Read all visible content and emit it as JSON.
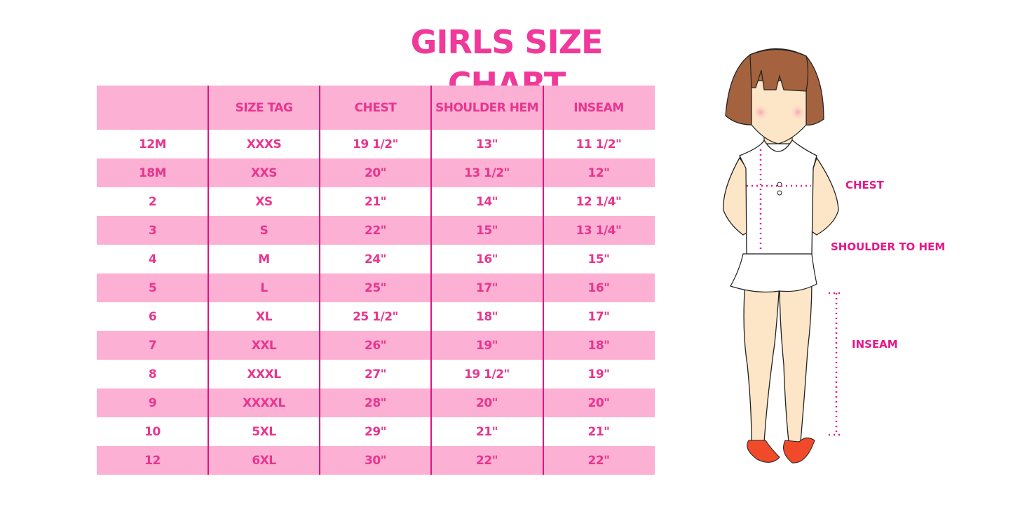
{
  "title": "GIRLS SIZE CHART",
  "table": {
    "headers": [
      "",
      "SIZE TAG",
      "CHEST",
      "SHOULDER HEM",
      "INSEAM"
    ],
    "rows": [
      [
        "12M",
        "XXXS",
        "19 1/2\"",
        "13\"",
        "11 1/2\""
      ],
      [
        "18M",
        "XXS",
        "20\"",
        "13 1/2\"",
        "12\""
      ],
      [
        "2",
        "XS",
        "21\"",
        "14\"",
        "12 1/4\""
      ],
      [
        "3",
        "S",
        "22\"",
        "15\"",
        "13 1/4\""
      ],
      [
        "4",
        "M",
        "24\"",
        "16\"",
        "15\""
      ],
      [
        "5",
        "L",
        "25\"",
        "17\"",
        "16\""
      ],
      [
        "6",
        "XL",
        "25 1/2\"",
        "18\"",
        "17\""
      ],
      [
        "7",
        "XXL",
        "26\"",
        "19\"",
        "18\""
      ],
      [
        "8",
        "XXXL",
        "27\"",
        "19 1/2\"",
        "19\""
      ],
      [
        "9",
        "XXXXL",
        "28\"",
        "20\"",
        "20\""
      ],
      [
        "10",
        "5XL",
        "29\"",
        "21\"",
        "21\""
      ],
      [
        "12",
        "6XL",
        "30\"",
        "22\"",
        "22\""
      ]
    ]
  },
  "diagram": {
    "labels": {
      "chest": "CHEST",
      "shoulder_to_hem": "SHOULDER TO HEM",
      "inseam": "INSEAM"
    }
  },
  "colors": {
    "accent": "#e8358f",
    "band": "#fcb0d4",
    "divider": "#e0147f"
  }
}
